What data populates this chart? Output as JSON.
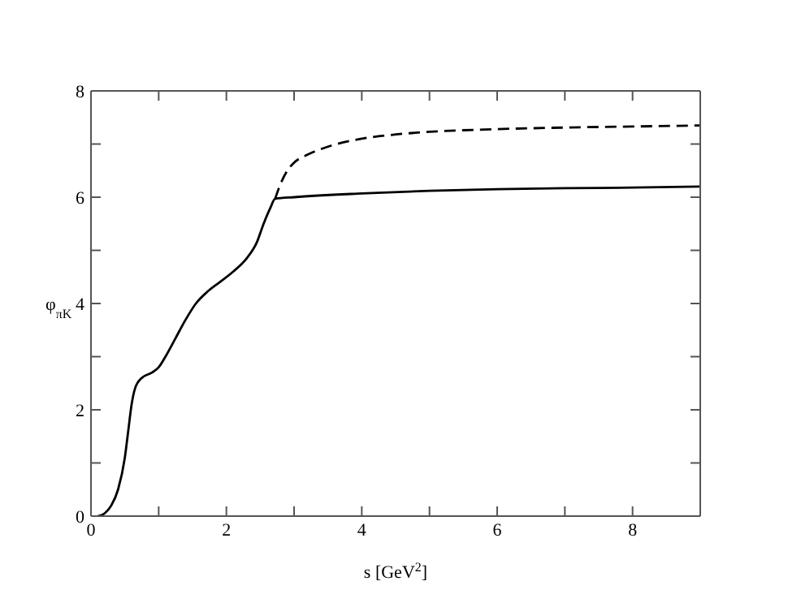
{
  "chart_data": {
    "type": "line",
    "xlabel": "s [GeV$^{2}$]",
    "ylabel": "φ$_{πK}$",
    "xlim": [
      0,
      9
    ],
    "ylim": [
      0,
      8
    ],
    "xticks": [
      0,
      {
        "value": 1,
        "label": null
      },
      2,
      {
        "value": 3,
        "label": null
      },
      4,
      {
        "value": 5,
        "label": null
      },
      6,
      {
        "value": 7,
        "label": null
      },
      8
    ],
    "yticks": [
      0,
      {
        "value": 1,
        "label": null
      },
      2,
      {
        "value": 3,
        "label": null
      },
      4,
      {
        "value": 5,
        "label": null
      },
      6,
      {
        "value": 7,
        "label": null
      },
      8
    ],
    "legend": false,
    "marker": "none",
    "series": [
      {
        "color": "#000000",
        "line_style": "solid",
        "x": [
          0.1,
          0.2,
          0.3,
          0.4,
          0.5,
          0.55,
          0.6,
          0.65,
          0.75,
          0.9,
          1.0,
          1.1,
          1.25,
          1.4,
          1.55,
          1.7,
          1.9,
          2.1,
          2.3,
          2.45,
          2.55,
          2.65,
          2.72,
          3,
          4,
          5,
          6,
          7,
          8,
          9
        ],
        "values": [
          0,
          0.05,
          0.2,
          0.5,
          1.1,
          1.6,
          2.1,
          2.4,
          2.6,
          2.7,
          2.8,
          3.0,
          3.35,
          3.7,
          4.0,
          4.2,
          4.4,
          4.6,
          4.85,
          5.15,
          5.5,
          5.8,
          5.97,
          6.0,
          6.07,
          6.12,
          6.15,
          6.17,
          6.18,
          6.2
        ]
      },
      {
        "color": "#000000",
        "line_style": "dashed",
        "x": [
          2.72,
          2.8,
          2.9,
          3.0,
          3.2,
          3.5,
          4,
          4.5,
          5,
          6,
          7,
          8,
          9
        ],
        "values": [
          5.97,
          6.25,
          6.5,
          6.65,
          6.8,
          6.95,
          7.1,
          7.18,
          7.23,
          7.28,
          7.31,
          7.33,
          7.35
        ]
      }
    ]
  }
}
